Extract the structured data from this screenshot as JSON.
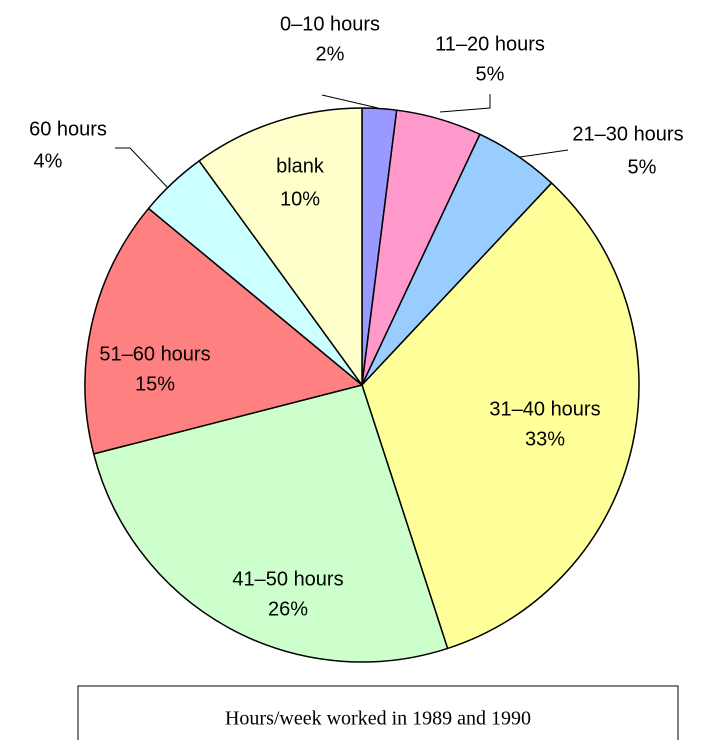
{
  "chart_data": {
    "type": "pie",
    "title": "Hours/week worked in 1989 and 1990",
    "categories": [
      "0–10 hours",
      "11–20 hours",
      "21–30 hours",
      "31–40 hours",
      "41–50 hours",
      "51–60 hours",
      "60 hours",
      "blank"
    ],
    "values": [
      2,
      5,
      5,
      33,
      26,
      15,
      4,
      10
    ],
    "value_labels": [
      "2%",
      "5%",
      "5%",
      "33%",
      "26%",
      "15%",
      "4%",
      "10%"
    ],
    "colors": [
      "#9999ff",
      "#ff99cc",
      "#99ccff",
      "#ffff99",
      "#ccffcc",
      "#ff8080",
      "#ccffff",
      "#ffffcc"
    ]
  }
}
